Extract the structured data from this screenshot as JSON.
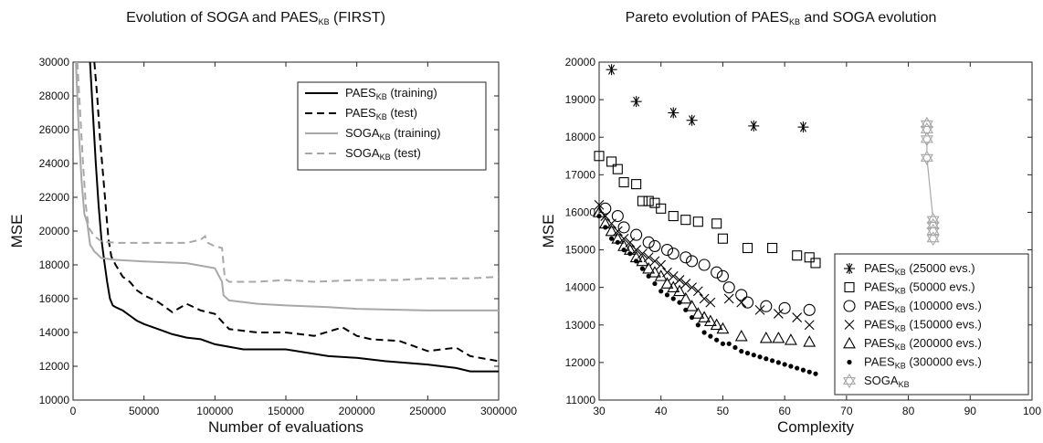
{
  "chart_data": [
    {
      "type": "line",
      "title": "Evolution of SOGA and PAES",
      "title_sub": "KB",
      "title_suffix": " (FIRST)",
      "xlabel": "Number of evaluations",
      "ylabel": "MSE",
      "xlim": [
        0,
        300000
      ],
      "ylim": [
        10000,
        30000
      ],
      "xticks": [
        "0",
        "50000",
        "100000",
        "150000",
        "200000",
        "250000",
        "300000"
      ],
      "yticks": [
        "10000",
        "12000",
        "14000",
        "16000",
        "18000",
        "20000",
        "22000",
        "24000",
        "26000",
        "28000",
        "30000"
      ],
      "grid": false,
      "legend_position": "top-right",
      "colors": {
        "paes": "#000000",
        "soga": "#a8a8a8"
      },
      "series": [
        {
          "name": "PAES",
          "name_sub": "KB",
          "name_suffix": " (training)",
          "color": "#000000",
          "dash": "solid",
          "x": [
            12000,
            14000,
            16000,
            18000,
            20000,
            22000,
            24000,
            26000,
            28000,
            30000,
            35000,
            40000,
            45000,
            50000,
            60000,
            70000,
            80000,
            90000,
            100000,
            120000,
            150000,
            180000,
            200000,
            220000,
            250000,
            270000,
            280000,
            300000
          ],
          "y": [
            30000,
            27000,
            24000,
            21500,
            19500,
            18200,
            17000,
            16000,
            15600,
            15500,
            15300,
            15000,
            14700,
            14500,
            14200,
            13900,
            13700,
            13600,
            13300,
            13000,
            13000,
            12600,
            12500,
            12300,
            12100,
            11900,
            11700,
            11700
          ]
        },
        {
          "name": "PAES",
          "name_sub": "KB",
          "name_suffix": " (test)",
          "color": "#000000",
          "dash": "dashed",
          "x": [
            15000,
            17000,
            19000,
            21000,
            23000,
            25000,
            27000,
            30000,
            35000,
            40000,
            45000,
            50000,
            60000,
            70000,
            80000,
            90000,
            100000,
            110000,
            130000,
            150000,
            170000,
            190000,
            200000,
            210000,
            230000,
            250000,
            270000,
            280000,
            300000
          ],
          "y": [
            30000,
            28000,
            25500,
            23500,
            21500,
            19500,
            18500,
            18000,
            17300,
            17000,
            16500,
            16200,
            15800,
            15200,
            15700,
            15300,
            15100,
            14200,
            14000,
            14000,
            13800,
            14300,
            13800,
            13600,
            13500,
            12900,
            13100,
            12600,
            12300
          ]
        },
        {
          "name": "SOGA",
          "name_sub": "KB",
          "name_suffix": " (training)",
          "color": "#a8a8a8",
          "dash": "solid",
          "x": [
            2000,
            4000,
            6000,
            8000,
            10000,
            12000,
            15000,
            20000,
            30000,
            50000,
            80000,
            100000,
            105000,
            106000,
            110000,
            130000,
            150000,
            180000,
            200000,
            250000,
            300000
          ],
          "y": [
            30000,
            26000,
            23000,
            21000,
            20500,
            19200,
            18800,
            18400,
            18300,
            18200,
            18100,
            17800,
            17000,
            16200,
            15900,
            15700,
            15600,
            15500,
            15400,
            15300,
            15300
          ]
        },
        {
          "name": "SOGA",
          "name_sub": "KB",
          "name_suffix": " (test)",
          "color": "#a8a8a8",
          "dash": "dashed",
          "x": [
            3000,
            5000,
            7000,
            9000,
            11000,
            15000,
            20000,
            30000,
            40000,
            50000,
            60000,
            70000,
            80000,
            90000,
            93000,
            95000,
            100000,
            105000,
            107000,
            110000,
            130000,
            150000,
            170000,
            200000,
            230000,
            250000,
            280000,
            300000
          ],
          "y": [
            30000,
            27000,
            24000,
            21500,
            20200,
            19700,
            19400,
            19300,
            19300,
            19300,
            19300,
            19300,
            19300,
            19500,
            19700,
            19300,
            19100,
            19000,
            17200,
            17000,
            17000,
            17100,
            17000,
            17100,
            17100,
            17200,
            17200,
            17300
          ]
        }
      ]
    },
    {
      "type": "scatter",
      "title": "Pareto evolution of PAES",
      "title_sub": "KB",
      "title_suffix": " and SOGA evolution",
      "xlabel": "Complexity",
      "ylabel": "MSE",
      "xlim": [
        30,
        100
      ],
      "ylim": [
        11000,
        20000
      ],
      "xticks": [
        "30",
        "40",
        "50",
        "60",
        "70",
        "80",
        "90",
        "100"
      ],
      "yticks": [
        "11000",
        "12000",
        "13000",
        "14000",
        "15000",
        "16000",
        "17000",
        "18000",
        "19000",
        "20000"
      ],
      "grid": false,
      "legend_position": "bottom-right",
      "series": [
        {
          "name": "PAES",
          "name_sub": "KB",
          "name_suffix": " (25000 evs.)",
          "marker": "asterisk",
          "color": "#000000",
          "points": [
            [
              32,
              19800
            ],
            [
              36,
              18950
            ],
            [
              42,
              18650
            ],
            [
              45,
              18450
            ],
            [
              55,
              18300
            ],
            [
              63,
              18270
            ]
          ]
        },
        {
          "name": "PAES",
          "name_sub": "KB",
          "name_suffix": " (50000 evs.)",
          "marker": "square",
          "color": "#000000",
          "points": [
            [
              30,
              17500
            ],
            [
              32,
              17350
            ],
            [
              33,
              17150
            ],
            [
              34,
              16800
            ],
            [
              36,
              16750
            ],
            [
              37,
              16300
            ],
            [
              38,
              16300
            ],
            [
              39,
              16250
            ],
            [
              40,
              16100
            ],
            [
              42,
              15900
            ],
            [
              44,
              15800
            ],
            [
              46,
              15750
            ],
            [
              49,
              15700
            ],
            [
              50,
              15300
            ],
            [
              54,
              15050
            ],
            [
              58,
              15050
            ],
            [
              62,
              14850
            ],
            [
              64,
              14800
            ],
            [
              65,
              14650
            ]
          ]
        },
        {
          "name": "PAES",
          "name_sub": "KB",
          "name_suffix": " (100000 evs.)",
          "marker": "circle",
          "color": "#000000",
          "points": [
            [
              31,
              16100
            ],
            [
              33,
              15900
            ],
            [
              34,
              15600
            ],
            [
              36,
              15400
            ],
            [
              38,
              15200
            ],
            [
              39,
              15100
            ],
            [
              41,
              15000
            ],
            [
              42,
              14900
            ],
            [
              44,
              14800
            ],
            [
              45,
              14700
            ],
            [
              47,
              14600
            ],
            [
              49,
              14400
            ],
            [
              50,
              14300
            ],
            [
              51,
              14000
            ],
            [
              53,
              13800
            ],
            [
              54,
              13600
            ],
            [
              57,
              13500
            ],
            [
              60,
              13450
            ],
            [
              64,
              13400
            ]
          ]
        },
        {
          "name": "PAES",
          "name_sub": "KB",
          "name_suffix": " (150000 evs.)",
          "marker": "x",
          "color": "#000000",
          "points": [
            [
              30,
              16200
            ],
            [
              31,
              15900
            ],
            [
              32,
              15700
            ],
            [
              33,
              15500
            ],
            [
              34,
              15300
            ],
            [
              35,
              15200
            ],
            [
              36,
              15000
            ],
            [
              37,
              14900
            ],
            [
              38,
              14800
            ],
            [
              39,
              14700
            ],
            [
              40,
              14600
            ],
            [
              41,
              14400
            ],
            [
              42,
              14300
            ],
            [
              43,
              14200
            ],
            [
              44,
              14100
            ],
            [
              45,
              14000
            ],
            [
              46,
              13900
            ],
            [
              47,
              13700
            ],
            [
              48,
              13600
            ],
            [
              51,
              13700
            ],
            [
              53,
              13600
            ],
            [
              56,
              13400
            ],
            [
              59,
              13300
            ],
            [
              62,
              13200
            ],
            [
              64,
              13000
            ]
          ]
        },
        {
          "name": "PAES",
          "name_sub": "KB",
          "name_suffix": " (200000 evs.)",
          "marker": "triangle",
          "color": "#000000",
          "points": [
            [
              30,
              16000
            ],
            [
              31,
              15700
            ],
            [
              32,
              15500
            ],
            [
              33,
              15300
            ],
            [
              34,
              15100
            ],
            [
              35,
              15000
            ],
            [
              36,
              14800
            ],
            [
              37,
              14700
            ],
            [
              38,
              14500
            ],
            [
              39,
              14400
            ],
            [
              40,
              14300
            ],
            [
              41,
              14100
            ],
            [
              42,
              14000
            ],
            [
              43,
              13900
            ],
            [
              44,
              13700
            ],
            [
              45,
              13500
            ],
            [
              46,
              13300
            ],
            [
              47,
              13200
            ],
            [
              48,
              13100
            ],
            [
              49,
              13000
            ],
            [
              50,
              12900
            ],
            [
              53,
              12700
            ],
            [
              57,
              12650
            ],
            [
              59,
              12650
            ],
            [
              61,
              12600
            ],
            [
              64,
              12550
            ]
          ]
        },
        {
          "name": "PAES",
          "name_sub": "KB",
          "name_suffix": " (300000 evs.)",
          "marker": "dot",
          "color": "#000000",
          "points": [
            [
              30,
              15900
            ],
            [
              31,
              15600
            ],
            [
              32,
              15300
            ],
            [
              33,
              15200
            ],
            [
              34,
              15000
            ],
            [
              35,
              14900
            ],
            [
              36,
              14700
            ],
            [
              37,
              14500
            ],
            [
              38,
              14300
            ],
            [
              39,
              14100
            ],
            [
              40,
              13900
            ],
            [
              41,
              13800
            ],
            [
              42,
              13700
            ],
            [
              43,
              13600
            ],
            [
              44,
              13400
            ],
            [
              45,
              13200
            ],
            [
              46,
              13000
            ],
            [
              47,
              12800
            ],
            [
              48,
              12700
            ],
            [
              49,
              12600
            ],
            [
              50,
              12500
            ],
            [
              51,
              12500
            ],
            [
              52,
              12400
            ],
            [
              53,
              12300
            ],
            [
              54,
              12250
            ],
            [
              55,
              12200
            ],
            [
              56,
              12150
            ],
            [
              57,
              12100
            ],
            [
              58,
              12050
            ],
            [
              59,
              12000
            ],
            [
              60,
              11950
            ],
            [
              61,
              11900
            ],
            [
              62,
              11850
            ],
            [
              63,
              11800
            ],
            [
              64,
              11750
            ],
            [
              65,
              11700
            ]
          ]
        },
        {
          "name": "SOGA",
          "name_sub": "KB",
          "name_suffix": "",
          "marker": "star",
          "color": "#a8a8a8",
          "points": [
            [
              83,
              18350
            ],
            [
              83,
              18200
            ],
            [
              83,
              17950
            ],
            [
              83,
              17450
            ],
            [
              84,
              15800
            ],
            [
              84,
              15650
            ],
            [
              84,
              15500
            ],
            [
              84,
              15300
            ]
          ]
        }
      ]
    }
  ]
}
